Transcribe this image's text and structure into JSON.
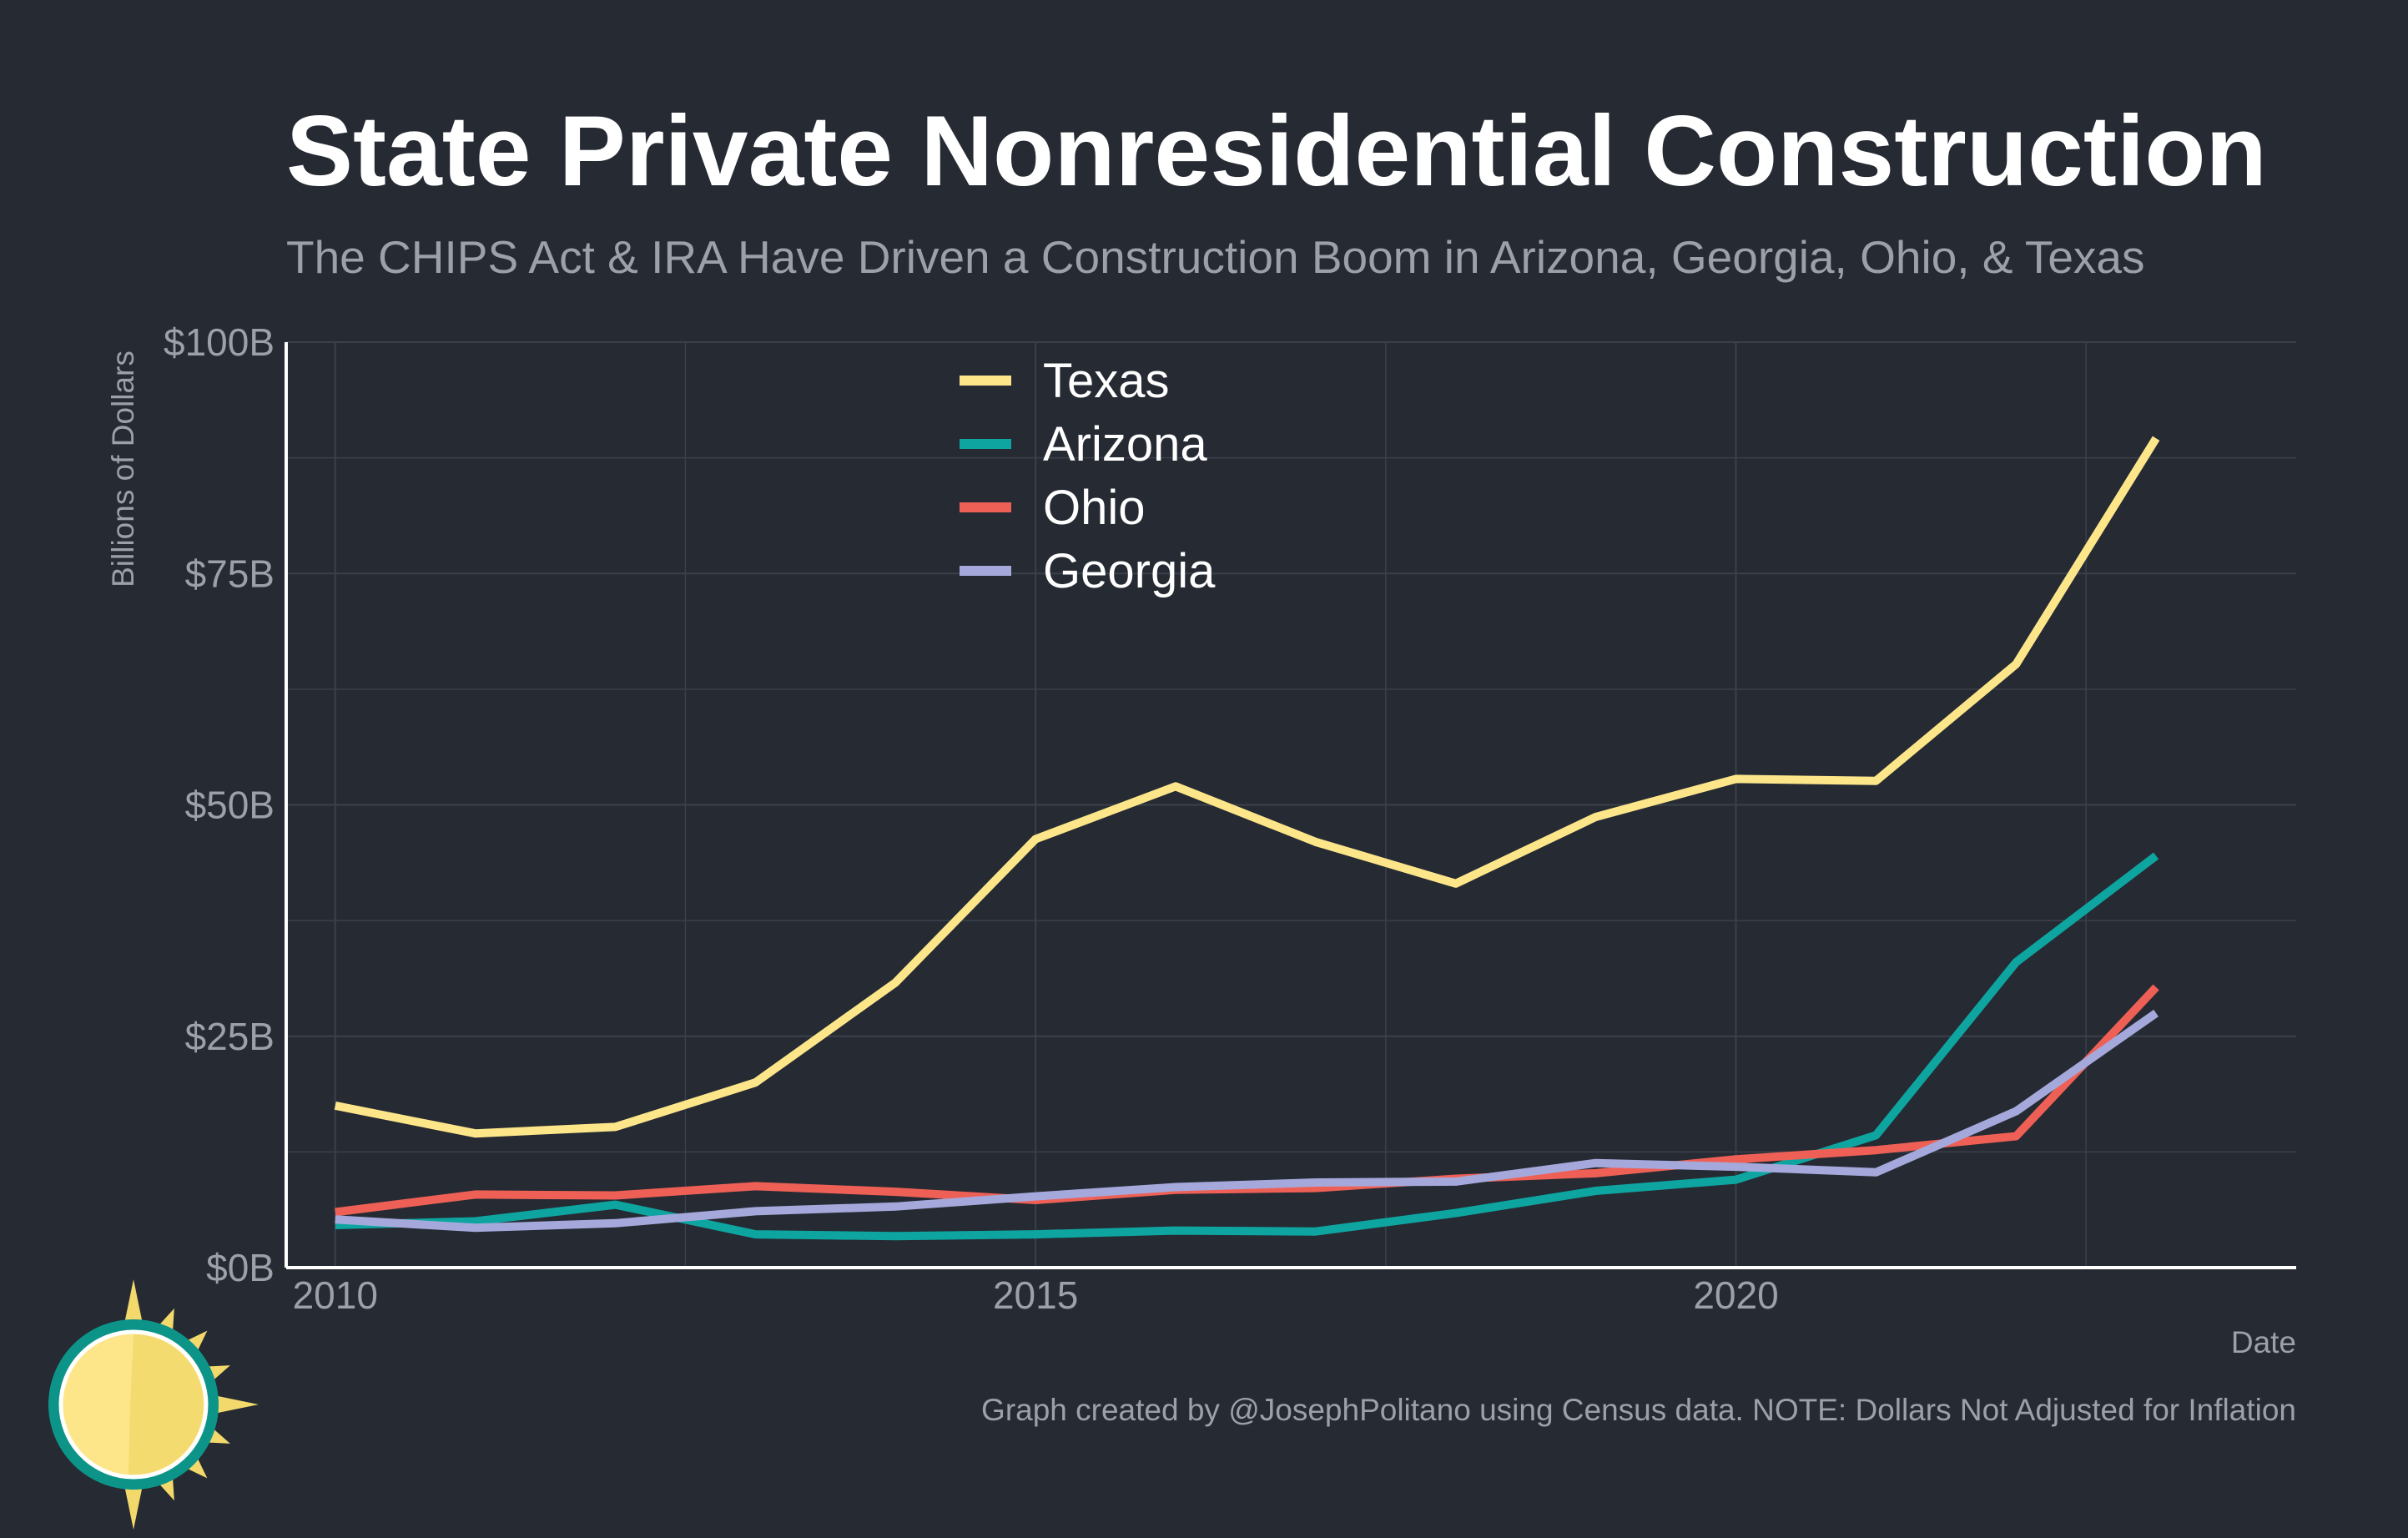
{
  "chart_data": {
    "type": "line",
    "title": "State Private Nonresidential Construction",
    "subtitle": "The CHIPS Act & IRA Have Driven a Construction Boom in Arizona, Georgia, Ohio, & Texas",
    "xlabel": "Date",
    "ylabel": "Billions of Dollars",
    "caption": "Graph created by @JosephPolitano using Census data. NOTE: Dollars Not Adjusted for Inflation",
    "xlim": [
      2009.65,
      2024.0
    ],
    "ylim": [
      0,
      100
    ],
    "x_ticks": [
      2010,
      2015,
      2020
    ],
    "x_tick_labels": [
      "2010",
      "2015",
      "2020"
    ],
    "y_ticks": [
      0,
      25,
      50,
      75,
      100
    ],
    "y_tick_labels": [
      "$0B",
      "$25B",
      "$50B",
      "$75B",
      "$100B"
    ],
    "grid": true,
    "legend_position": "top-center",
    "x": [
      2010,
      2011,
      2012,
      2013,
      2014,
      2015,
      2016,
      2017,
      2018,
      2019,
      2020,
      2021,
      2022,
      2023
    ],
    "series": [
      {
        "name": "Texas",
        "color": "#fde68a",
        "values": [
          17.5,
          14.5,
          15.2,
          20.0,
          30.8,
          46.3,
          52.0,
          46.0,
          41.5,
          48.7,
          52.8,
          52.6,
          65.2,
          89.6
        ]
      },
      {
        "name": "Arizona",
        "color": "#0ea5a0",
        "values": [
          4.6,
          5.0,
          6.8,
          3.6,
          3.4,
          3.6,
          4.0,
          3.9,
          5.9,
          8.3,
          9.5,
          14.3,
          33.0,
          44.5
        ]
      },
      {
        "name": "Ohio",
        "color": "#ee6055",
        "values": [
          6.0,
          7.9,
          7.8,
          8.8,
          8.2,
          7.3,
          8.4,
          8.6,
          9.6,
          10.2,
          11.7,
          12.7,
          14.2,
          30.3
        ]
      },
      {
        "name": "Georgia",
        "color": "#a5a8da",
        "values": [
          5.2,
          4.3,
          4.8,
          6.1,
          6.6,
          7.7,
          8.7,
          9.2,
          9.3,
          11.3,
          10.9,
          10.3,
          16.9,
          27.5
        ]
      }
    ]
  },
  "logo": {
    "icon": "sun-logo-icon"
  }
}
